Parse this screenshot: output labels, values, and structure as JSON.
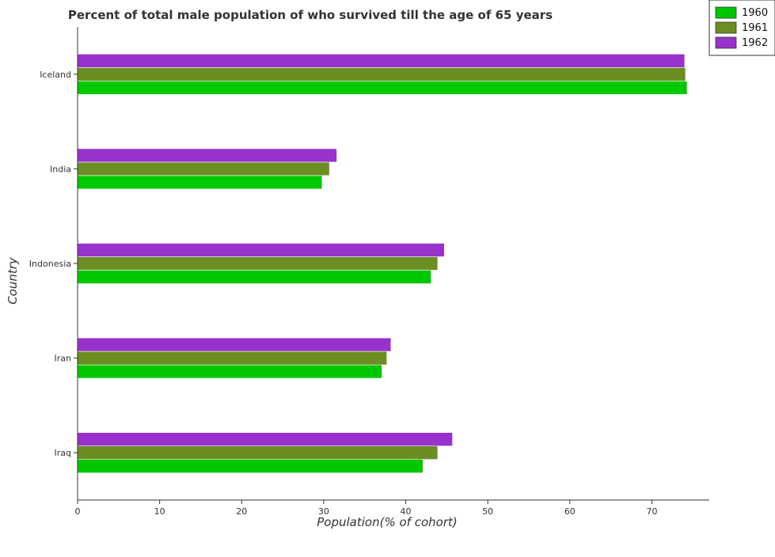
{
  "chart_data": {
    "type": "bar",
    "orientation": "horizontal",
    "title": "Percent of total male population of who survived till the age of 65 years",
    "xlabel": "Population(% of cohort)",
    "ylabel": "Country",
    "categories": [
      "Iceland",
      "India",
      "Indonesia",
      "Iran",
      "Iraq"
    ],
    "series": [
      {
        "name": "1960",
        "color": "#00c800",
        "values": [
          74.3,
          29.8,
          43.1,
          37.1,
          42.1
        ]
      },
      {
        "name": "1961",
        "color": "#6b8e23",
        "values": [
          74.1,
          30.7,
          43.9,
          37.7,
          43.9
        ]
      },
      {
        "name": "1962",
        "color": "#9932cc",
        "values": [
          74.0,
          31.6,
          44.7,
          38.2,
          45.7
        ]
      }
    ],
    "xlim": [
      0,
      77
    ],
    "xticks": [
      0,
      10,
      20,
      30,
      40,
      50,
      60,
      70
    ],
    "grid": false,
    "legend_position": "top-right"
  }
}
